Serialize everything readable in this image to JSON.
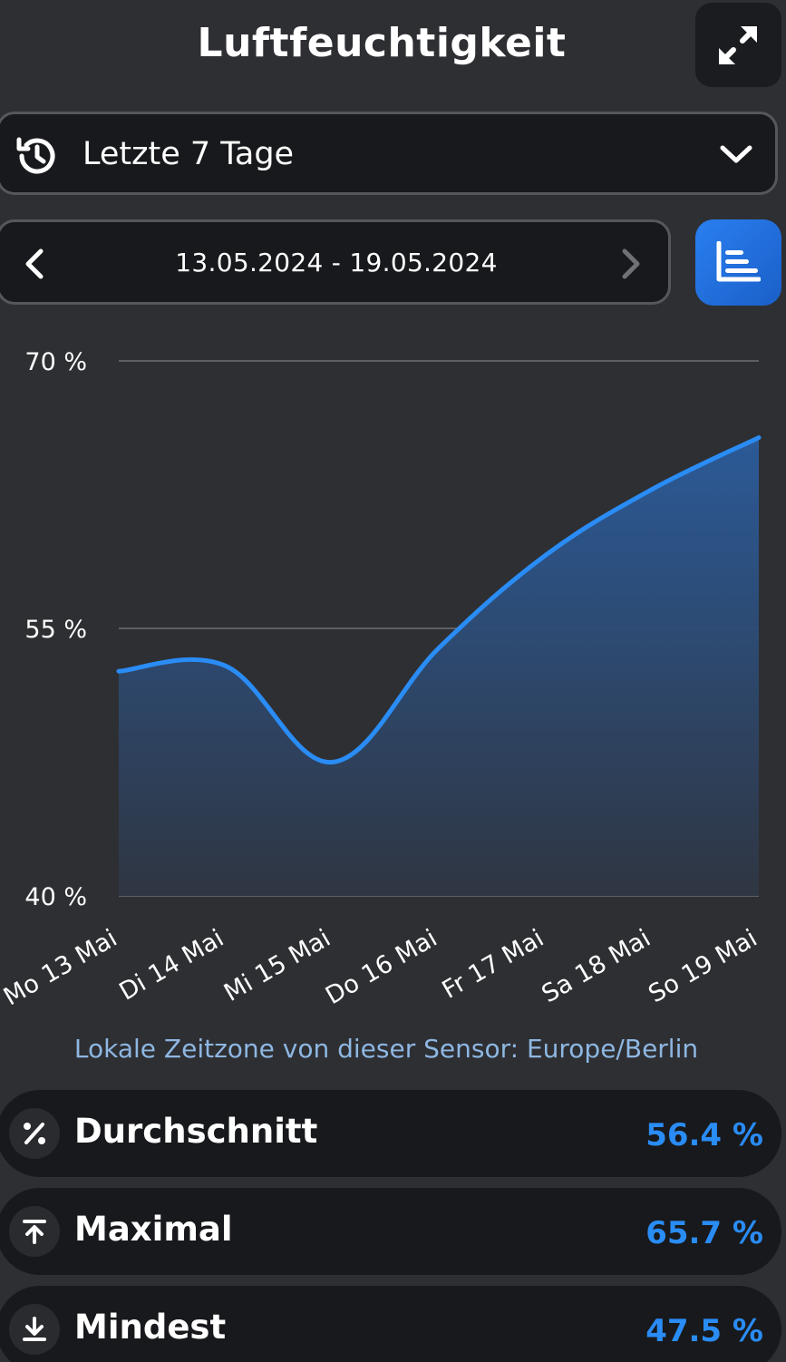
{
  "header": {
    "title": "Luftfeuchtigkeit",
    "expand_icon": "expand-arrows-icon"
  },
  "range_select": {
    "label": "Letzte 7 Tage",
    "icon": "history-icon"
  },
  "date_nav": {
    "range": "13.05.2024 - 19.05.2024"
  },
  "chart_type_button": {
    "icon": "bar-chart-icon",
    "color": "#2a7ff0"
  },
  "chart_data": {
    "type": "area",
    "categories": [
      "Mo 13 Mai",
      "Di 14 Mai",
      "Mi 15 Mai",
      "Do 16 Mai",
      "Fr 17 Mai",
      "Sa 18 Mai",
      "So 19 Mai"
    ],
    "series": [
      {
        "values": [
          52.6,
          52.9,
          47.5,
          53.9,
          59.1,
          62.8,
          65.7
        ]
      }
    ],
    "yticks": [
      "70 %",
      "55 %",
      "40 %"
    ],
    "ylim": [
      40,
      70
    ],
    "grid": true,
    "line_color": "#2a8cf5"
  },
  "timezone_note": "Lokale Zeitzone von dieser Sensor: Europe/Berlin",
  "stats": [
    {
      "icon": "percent-icon",
      "label": "Durchschnitt",
      "value": "56.4 %"
    },
    {
      "icon": "arrow-up-to-line-icon",
      "label": "Maximal",
      "value": "65.7 %"
    },
    {
      "icon": "arrow-down-to-line-icon",
      "label": "Mindest",
      "value": "47.5 %"
    }
  ]
}
